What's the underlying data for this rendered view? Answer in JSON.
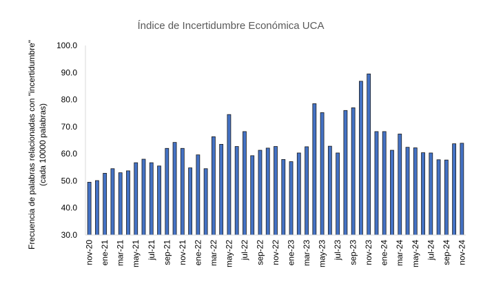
{
  "chart_data": {
    "type": "bar",
    "title": "Índice de Incertidumbre Económica UCA",
    "xlabel": "",
    "ylabel_line1": "Frecuencia de palabras relacionadas con \"incertidumbre\"",
    "ylabel_line2": "(cada 10000 palabras)",
    "ylim": [
      30,
      100
    ],
    "yticks": [
      "30.0",
      "40.0",
      "50.0",
      "60.0",
      "70.0",
      "80.0",
      "90.0",
      "100.0"
    ],
    "categories": [
      "nov-20",
      "dic-20",
      "ene-21",
      "feb-21",
      "mar-21",
      "abr-21",
      "may-21",
      "jun-21",
      "jul-21",
      "ago-21",
      "sep-21",
      "oct-21",
      "nov-21",
      "dic-21",
      "ene-22",
      "feb-22",
      "mar-22",
      "abr-22",
      "may-22",
      "jun-22",
      "jul-22",
      "ago-22",
      "sep-22",
      "oct-22",
      "nov-22",
      "dic-22",
      "ene-23",
      "feb-23",
      "mar-23",
      "abr-23",
      "may-23",
      "jun-23",
      "jul-23",
      "ago-23",
      "sep-23",
      "oct-23",
      "nov-23",
      "dic-23",
      "ene-24",
      "feb-24",
      "mar-24",
      "abr-24",
      "may-24",
      "jun-24",
      "jul-24",
      "ago-24",
      "sep-24",
      "oct-24",
      "nov-24"
    ],
    "shown_tick_labels": [
      "nov-20",
      "ene-21",
      "mar-21",
      "may-21",
      "jul-21",
      "sep-21",
      "nov-21",
      "ene-22",
      "mar-22",
      "may-22",
      "jul-22",
      "sep-22",
      "nov-22",
      "ene-23",
      "mar-23",
      "may-23",
      "jul-23",
      "sep-23",
      "nov-23",
      "ene-24",
      "mar-24",
      "may-24",
      "jul-24",
      "sep-24",
      "nov-24"
    ],
    "values": [
      49.5,
      50.1,
      52.8,
      54.5,
      53.0,
      53.7,
      56.7,
      58.0,
      56.7,
      55.5,
      62.0,
      64.2,
      62.0,
      54.8,
      59.6,
      54.5,
      66.3,
      63.5,
      74.5,
      62.7,
      68.2,
      59.3,
      61.3,
      62.1,
      62.7,
      57.9,
      57.1,
      60.3,
      62.6,
      78.5,
      75.2,
      62.8,
      60.3,
      76.0,
      77.0,
      86.8,
      89.5,
      68.2,
      68.2,
      61.3,
      67.3,
      62.4,
      62.2,
      60.4,
      60.3,
      57.8,
      57.7,
      63.7,
      63.9
    ],
    "bar_color": "#4472C4",
    "grid": false,
    "legend": "none"
  }
}
